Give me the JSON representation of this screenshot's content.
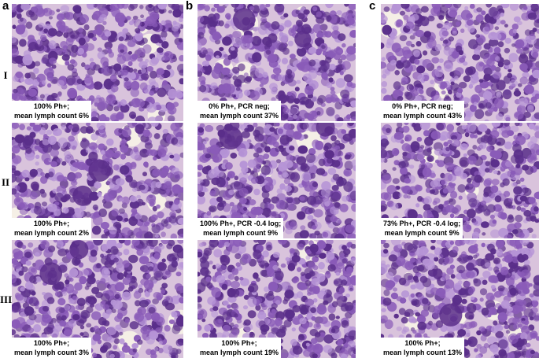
{
  "columns": [
    {
      "letter": "a"
    },
    {
      "letter": "b"
    },
    {
      "letter": "c"
    }
  ],
  "rows": [
    {
      "label": "I"
    },
    {
      "label": "II"
    },
    {
      "label": "III"
    }
  ],
  "panels": [
    {
      "col": "a",
      "row": "I",
      "line1": "100% Ph+;",
      "line2": "mean lymph count 6%"
    },
    {
      "col": "a",
      "row": "II",
      "line1": "100% Ph+;",
      "line2": "mean lymph count 2%"
    },
    {
      "col": "a",
      "row": "III",
      "line1": "100% Ph+;",
      "line2": "mean lymph count 3%"
    },
    {
      "col": "b",
      "row": "I",
      "line1": "0% Ph+, PCR neg;",
      "line2": "mean lymph count 37%"
    },
    {
      "col": "b",
      "row": "II",
      "line1": "100% Ph+, PCR -0.4 log;",
      "line2": "mean lymph count 9%"
    },
    {
      "col": "b",
      "row": "III",
      "line1": "100% Ph+;",
      "line2": "mean lymph count 19%"
    },
    {
      "col": "c",
      "row": "I",
      "line1": "0% Ph+, PCR neg;",
      "line2": "mean lymph count 43%"
    },
    {
      "col": "c",
      "row": "II",
      "line1": "73% Ph+, PCR -0.4 log;",
      "line2": "mean lymph count 9%"
    },
    {
      "col": "c",
      "row": "III",
      "line1": "100% Ph+;",
      "line2": "mean lymph count 13%"
    }
  ],
  "colors": {
    "cell_dark": "#5a2e8a",
    "cell_mid": "#8a5bb8",
    "cell_light": "#b694d6",
    "background_stain": "#d9c3dc",
    "fat_vacuole": "#f5efe6"
  },
  "icons": {
    "panel_image": "bone-marrow-smear-micrograph"
  }
}
